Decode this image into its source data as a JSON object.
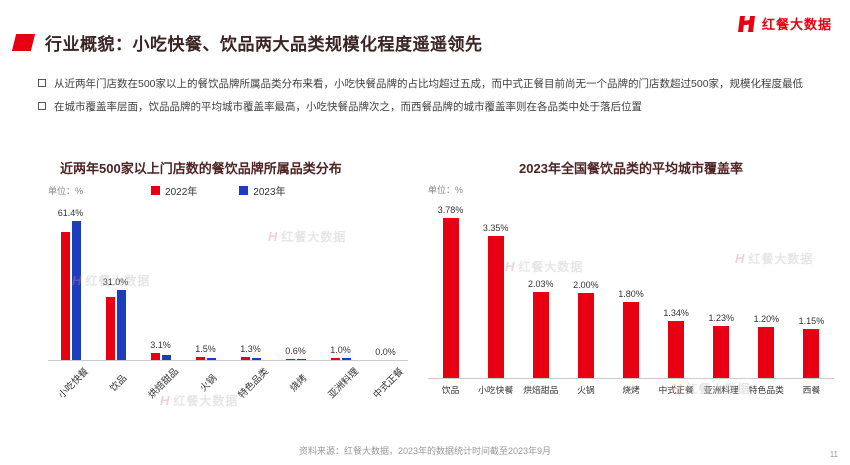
{
  "brand": {
    "logo_text": "红餐大数据"
  },
  "header": {
    "title": "行业概貌：小吃快餐、饮品两大品类规模化程度遥遥领先"
  },
  "bullets": [
    "从近两年门店数在500家以上的餐饮品牌所属品类分布来看，小吃快餐品牌的占比均超过五成，而中式正餐目前尚无一个品牌的门店数超过500家，规模化程度最低",
    "在城市覆盖率层面，饮品品牌的平均城市覆盖率最高，小吃快餐品牌次之，而西餐品牌的城市覆盖率则在各品类中处于落后位置"
  ],
  "watermark": {
    "text": "红餐大数据"
  },
  "footer": {
    "source": "资料来源：红餐大数据，2023年的数据统计时间截至2023年9月",
    "page": "11"
  },
  "colors": {
    "accent_red": "#e60012",
    "accent_blue": "#1d3dbf"
  },
  "chart_data": [
    {
      "type": "bar",
      "title": "近两年500家以上门店数的餐饮品牌所属品类分布",
      "unit_label": "单位：%",
      "categories": [
        "小吃快餐",
        "饮品",
        "烘焙甜品",
        "火锅",
        "特色品类",
        "烧烤",
        "亚洲料理",
        "中式正餐"
      ],
      "series": [
        {
          "name": "2022年",
          "color": "#e60012",
          "values": [
            56.5,
            28.0,
            3.1,
            1.5,
            1.3,
            0.6,
            1.0,
            0.0
          ]
        },
        {
          "name": "2023年",
          "color": "#1d3dbf",
          "values": [
            61.4,
            31.0,
            2.4,
            1.1,
            1.0,
            0.5,
            0.8,
            0.0
          ]
        }
      ],
      "data_labels": [
        "61.4%",
        "31.0%",
        "3.1%",
        "1.5%",
        "1.3%",
        "0.6%",
        "1.0%",
        "0.0%"
      ],
      "ylim": [
        0,
        70
      ],
      "legend_position": "top",
      "grid": false
    },
    {
      "type": "bar",
      "title": "2023年全国餐饮品类的平均城市覆盖率",
      "unit_label": "单位：%",
      "categories": [
        "饮品",
        "小吃快餐",
        "烘焙甜品",
        "火锅",
        "烧烤",
        "中式正餐",
        "亚洲料理",
        "特色品类",
        "西餐"
      ],
      "values": [
        3.78,
        3.35,
        2.03,
        2.0,
        1.8,
        1.34,
        1.23,
        1.2,
        1.15
      ],
      "data_labels": [
        "3.78%",
        "3.35%",
        "2.03%",
        "2.00%",
        "1.80%",
        "1.34%",
        "1.23%",
        "1.20%",
        "1.15%"
      ],
      "color": "#e60012",
      "ylim": [
        0,
        4.2
      ],
      "grid": false
    }
  ]
}
